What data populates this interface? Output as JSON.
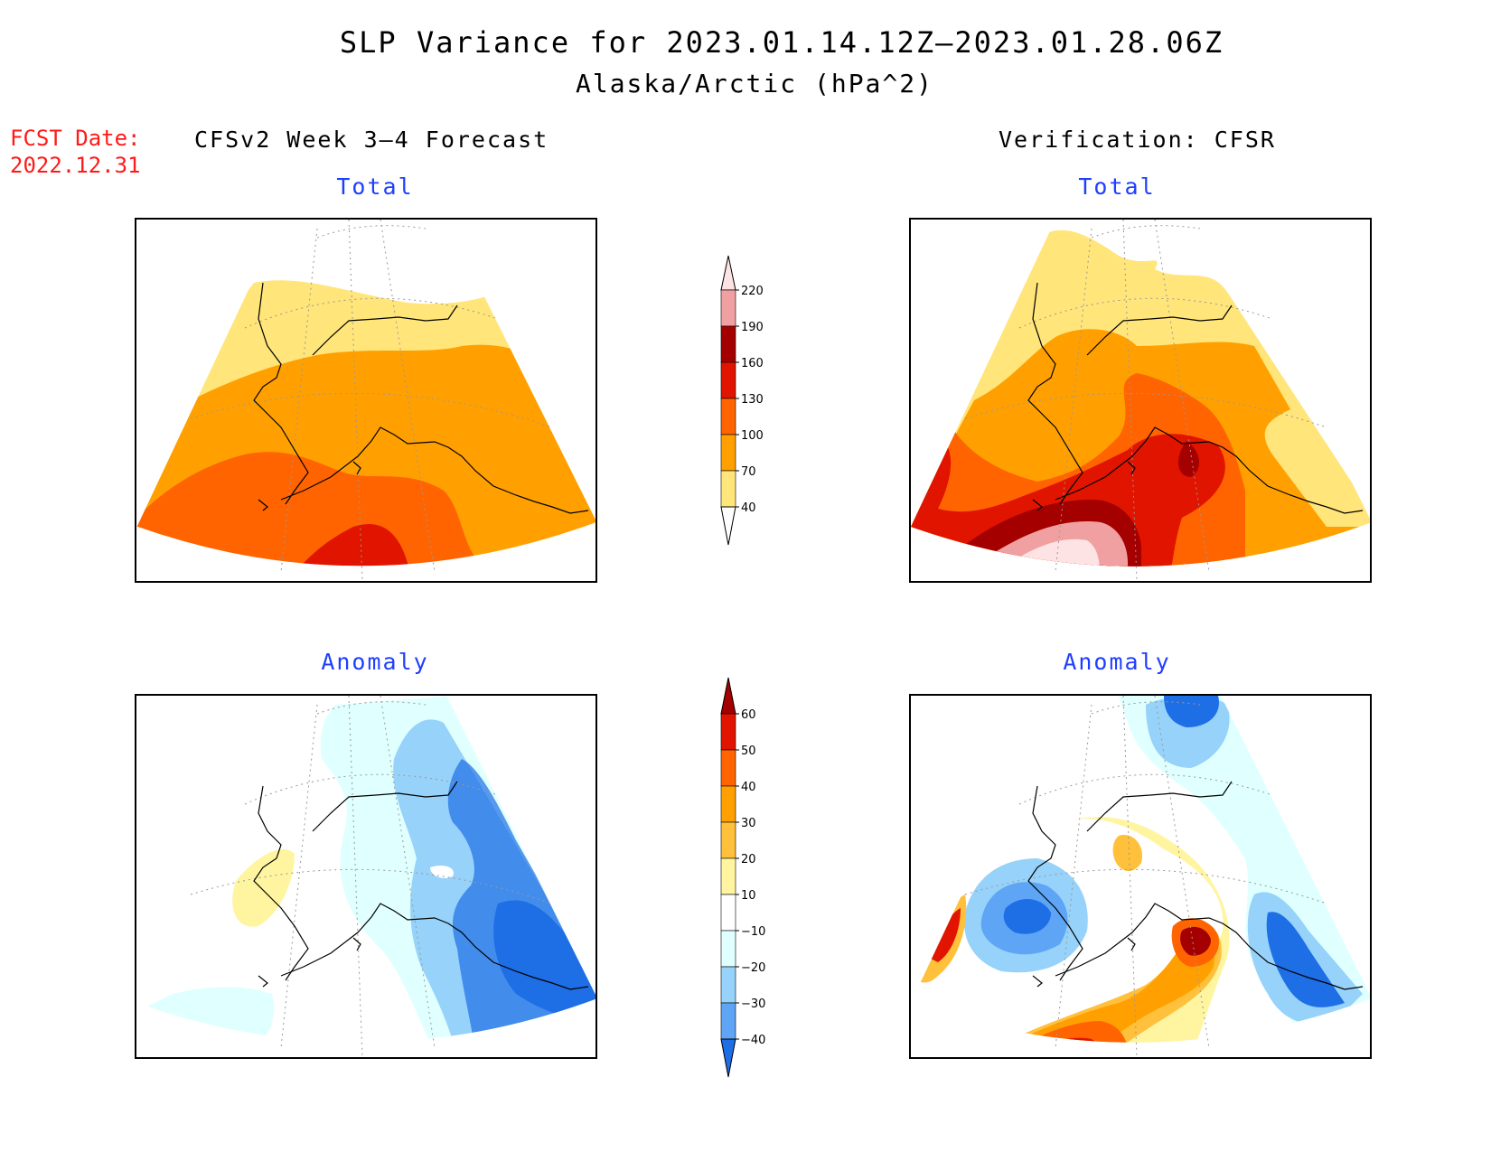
{
  "title": "SLP Variance for 2023.01.14.12Z—2023.01.28.06Z",
  "subtitle": "Alaska/Arctic (hPa^2)",
  "fcst_date_label": "FCST Date:",
  "fcst_date": "2022.12.31",
  "left_column_title": "CFSv2 Week 3—4 Forecast",
  "right_column_title": "Verification: CFSR",
  "panels": {
    "forecast_total": "Total",
    "verification_total": "Total",
    "forecast_anomaly": "Anomaly",
    "verification_anomaly": "Anomaly"
  },
  "colorbar_total": {
    "labels": [
      "220",
      "190",
      "160",
      "130",
      "100",
      "70",
      "40"
    ],
    "colors": {
      "lt_40": "#ffffff",
      "40_70": "#ffe57a",
      "70_100": "#ffa000",
      "100_130": "#ff6400",
      "130_160": "#e11400",
      "160_190": "#a50000",
      "190_220": "#f0a0a0",
      "gt_220": "#fde3e3"
    }
  },
  "colorbar_anomaly": {
    "labels": [
      "60",
      "50",
      "40",
      "30",
      "20",
      "10",
      "−10",
      "−20",
      "−30",
      "−40"
    ],
    "colors": {
      "gt_60": "#a50000",
      "50_60": "#e11400",
      "40_50": "#ff6400",
      "30_40": "#ffa000",
      "20_30": "#ffc03c",
      "10_20": "#fff5a0",
      "m10_10": "#ffffff",
      "m20_m10": "#e0ffff",
      "m30_m20": "#96d2fa",
      "m40_m30": "#5fa5f5",
      "lt_m40": "#1e6ee6"
    }
  },
  "map_region": "Alaska / Arctic polar stereographic"
}
